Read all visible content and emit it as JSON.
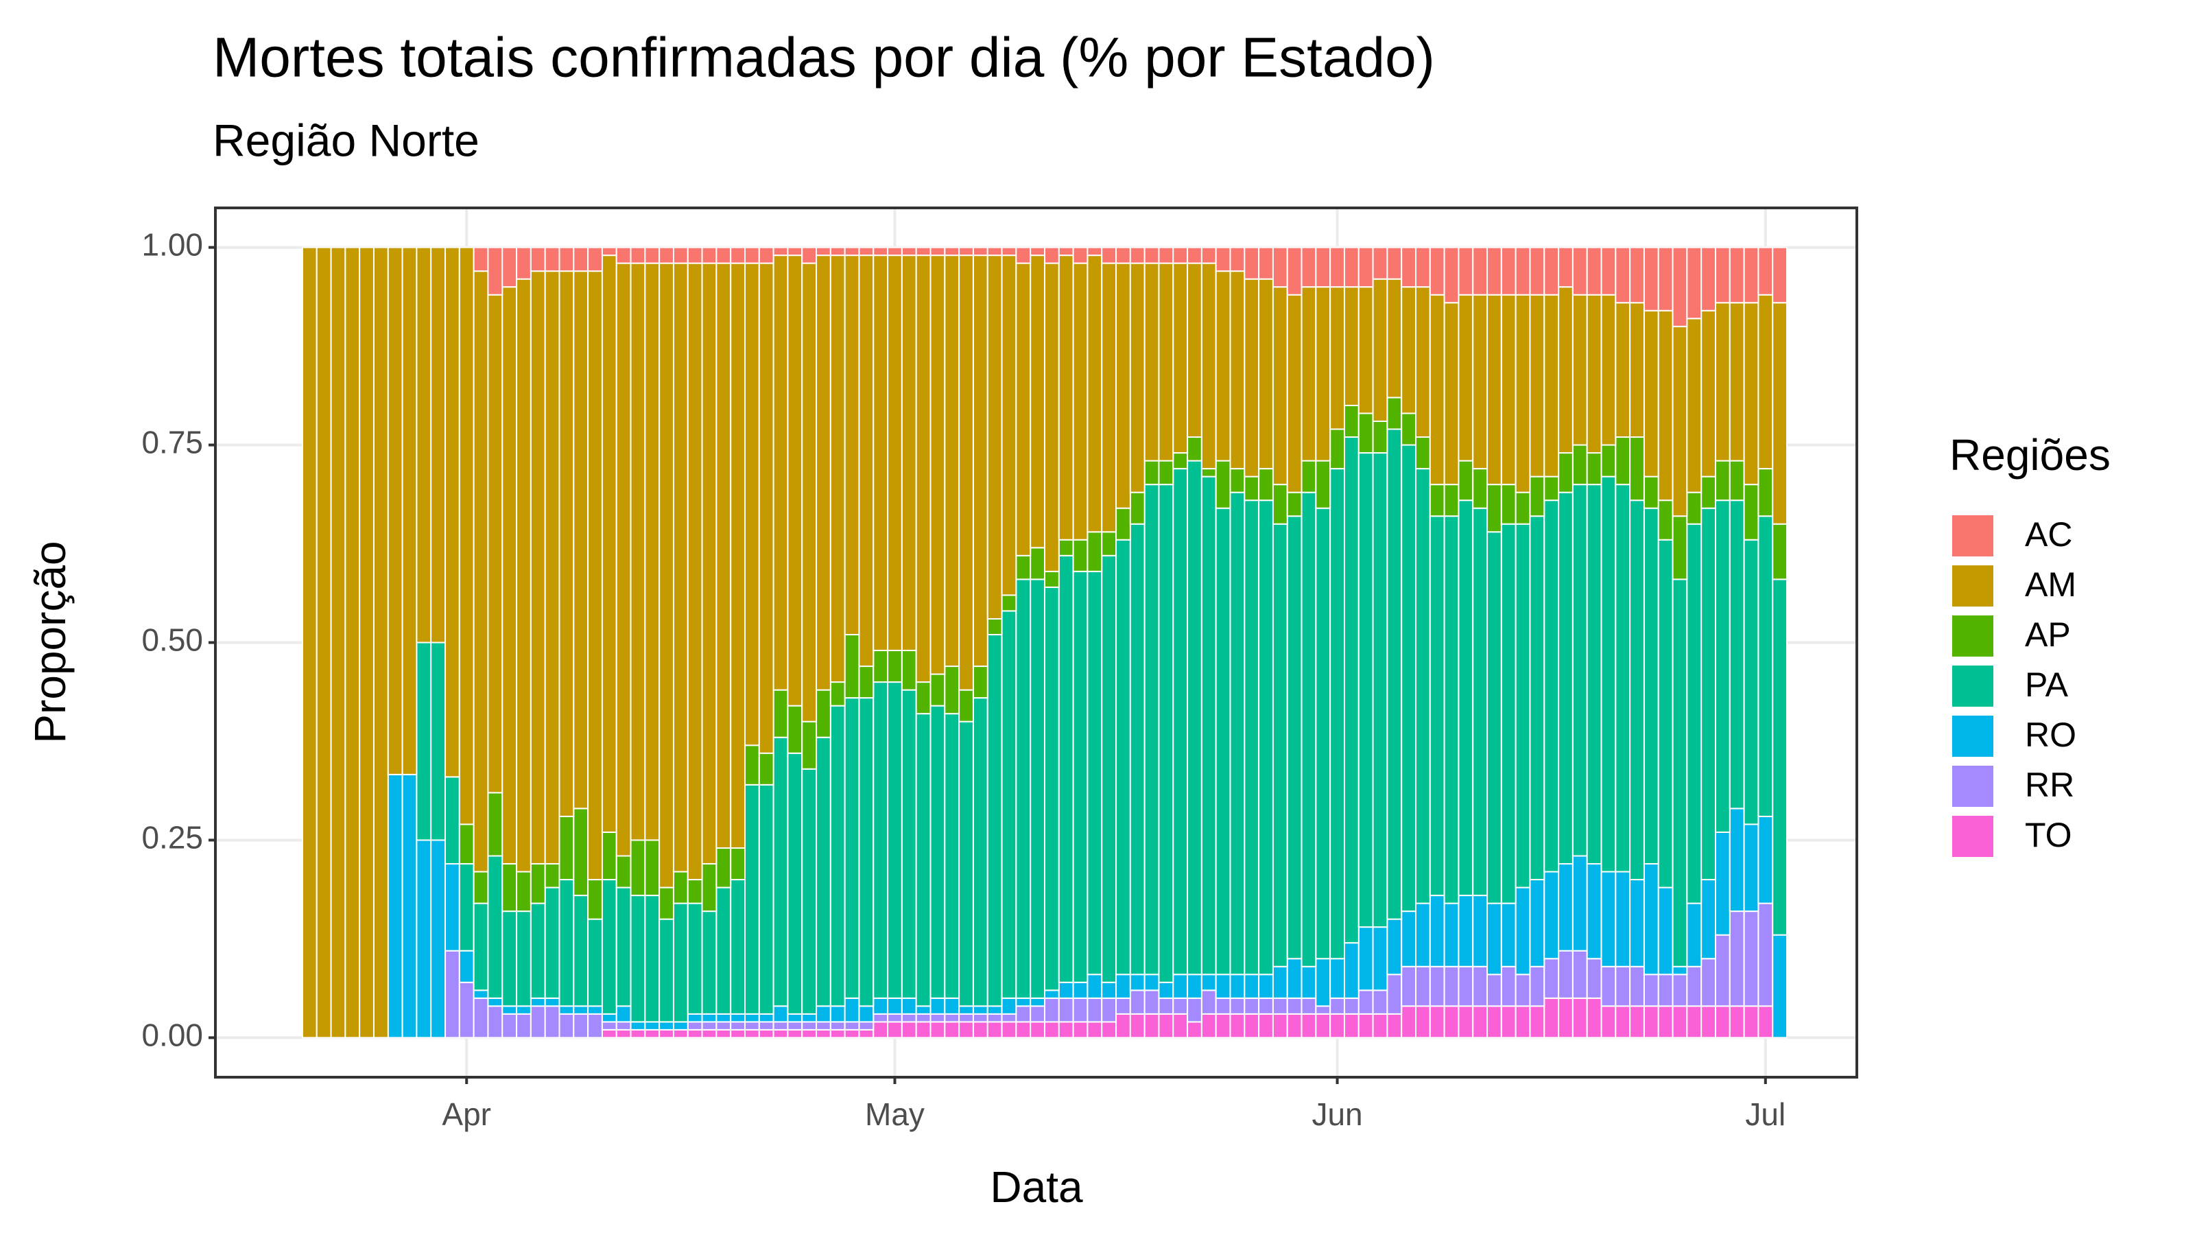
{
  "chart_data": {
    "type": "stacked_bar",
    "title": "Mortes totais confirmadas por dia (% por Estado)",
    "subtitle": "Região  Norte",
    "x_label": "Data",
    "y_label": "Proporção",
    "legend_title": "Regiões",
    "legend_position": "right",
    "grid": true,
    "categories": [
      null,
      null,
      null,
      null,
      null,
      null,
      null,
      null,
      null,
      null,
      null,
      "Apr",
      null,
      null,
      null,
      null,
      null,
      null,
      null,
      null,
      null,
      null,
      null,
      null,
      null,
      null,
      null,
      null,
      null,
      null,
      null,
      null,
      null,
      null,
      null,
      null,
      null,
      null,
      null,
      null,
      null,
      "May",
      null,
      null,
      null,
      null,
      null,
      null,
      null,
      null,
      null,
      null,
      null,
      null,
      null,
      null,
      null,
      null,
      null,
      null,
      null,
      null,
      null,
      null,
      null,
      null,
      null,
      null,
      null,
      null,
      null,
      null,
      "Jun",
      null,
      null,
      null,
      null,
      null,
      null,
      null,
      null,
      null,
      null,
      null,
      null,
      null,
      null,
      null,
      null,
      null,
      null,
      null,
      null,
      null,
      null,
      null,
      null,
      null,
      null,
      null,
      null,
      null,
      "Jul",
      null
    ],
    "ylim": [
      -0.05,
      1.05
    ],
    "yticks": [
      {
        "value": 0,
        "label": "0.00"
      },
      {
        "value": 0.25,
        "label": "0.25"
      },
      {
        "value": 0.5,
        "label": "0.50"
      },
      {
        "value": 0.75,
        "label": "0.75"
      },
      {
        "value": 1,
        "label": "1.00"
      }
    ],
    "series": [
      {
        "name": "AC",
        "color": "#F8766D",
        "values": [
          0,
          0,
          0,
          0,
          0,
          0,
          0,
          0,
          0,
          0,
          0,
          0,
          0.03,
          0.06,
          0.05,
          0.04,
          0.03,
          0.03,
          0.03,
          0.03,
          0.03,
          0.01,
          0.02,
          0.02,
          0.02,
          0.02,
          0.02,
          0.02,
          0.02,
          0.02,
          0.02,
          0.02,
          0.02,
          0.01,
          0.01,
          0.02,
          0.01,
          0.01,
          0.01,
          0.01,
          0.01,
          0.01,
          0.01,
          0.01,
          0.01,
          0.01,
          0.01,
          0.01,
          0.01,
          0.01,
          0.02,
          0.01,
          0.02,
          0.01,
          0.02,
          0.01,
          0.02,
          0.02,
          0.02,
          0.02,
          0.02,
          0.02,
          0.02,
          0.02,
          0.03,
          0.03,
          0.04,
          0.04,
          0.05,
          0.06,
          0.05,
          0.05,
          0.05,
          0.05,
          0.05,
          0.04,
          0.04,
          0.05,
          0.05,
          0.06,
          0.07,
          0.06,
          0.06,
          0.06,
          0.06,
          0.06,
          0.06,
          0.06,
          0.05,
          0.06,
          0.06,
          0.06,
          0.07,
          0.07,
          0.08,
          0.08,
          0.1,
          0.09,
          0.08,
          0.07,
          0.07,
          0.07,
          0.06,
          0.07
        ]
      },
      {
        "name": "AM",
        "color": "#C49A00",
        "values": [
          1,
          1,
          1,
          1,
          1,
          1,
          0.667,
          0.667,
          0.5,
          0.5,
          0.67,
          0.73,
          0.76,
          0.63,
          0.73,
          0.75,
          0.75,
          0.75,
          0.69,
          0.68,
          0.77,
          0.73,
          0.75,
          0.73,
          0.73,
          0.79,
          0.77,
          0.78,
          0.76,
          0.74,
          0.74,
          0.61,
          0.62,
          0.55,
          0.57,
          0.58,
          0.55,
          0.54,
          0.48,
          0.52,
          0.5,
          0.5,
          0.5,
          0.54,
          0.53,
          0.52,
          0.55,
          0.52,
          0.46,
          0.43,
          0.37,
          0.37,
          0.39,
          0.36,
          0.35,
          0.35,
          0.34,
          0.31,
          0.29,
          0.25,
          0.25,
          0.24,
          0.22,
          0.26,
          0.24,
          0.25,
          0.25,
          0.24,
          0.25,
          0.25,
          0.22,
          0.22,
          0.18,
          0.15,
          0.16,
          0.18,
          0.15,
          0.16,
          0.19,
          0.24,
          0.23,
          0.21,
          0.22,
          0.24,
          0.24,
          0.25,
          0.23,
          0.23,
          0.21,
          0.19,
          0.2,
          0.19,
          0.17,
          0.17,
          0.21,
          0.24,
          0.24,
          0.22,
          0.21,
          0.2,
          0.2,
          0.23,
          0.22,
          0.28
        ]
      },
      {
        "name": "AP",
        "color": "#53B400",
        "values": [
          0,
          0,
          0,
          0,
          0,
          0,
          0,
          0,
          0,
          0,
          0,
          0.05,
          0.04,
          0.08,
          0.06,
          0.05,
          0.05,
          0.03,
          0.08,
          0.11,
          0.05,
          0.06,
          0.04,
          0.07,
          0.07,
          0.04,
          0.04,
          0.03,
          0.06,
          0.05,
          0.04,
          0.05,
          0.04,
          0.06,
          0.06,
          0.06,
          0.06,
          0.03,
          0.08,
          0.04,
          0.04,
          0.04,
          0.05,
          0.04,
          0.04,
          0.06,
          0.04,
          0.04,
          0.02,
          0.02,
          0.03,
          0.04,
          0.02,
          0.02,
          0.04,
          0.05,
          0.03,
          0.04,
          0.04,
          0.03,
          0.03,
          0.02,
          0.03,
          0.01,
          0.06,
          0.03,
          0.03,
          0.04,
          0.05,
          0.03,
          0.04,
          0.06,
          0.05,
          0.04,
          0.05,
          0.04,
          0.04,
          0.04,
          0.04,
          0.04,
          0.04,
          0.05,
          0.05,
          0.06,
          0.05,
          0.04,
          0.05,
          0.03,
          0.05,
          0.05,
          0.04,
          0.04,
          0.06,
          0.08,
          0.04,
          0.05,
          0.08,
          0.04,
          0.04,
          0.05,
          0.05,
          0.07,
          0.06,
          0.07
        ]
      },
      {
        "name": "PA",
        "color": "#00C094",
        "values": [
          0,
          0,
          0,
          0,
          0,
          0,
          0,
          0,
          0.25,
          0.25,
          0.11,
          0.11,
          0.11,
          0.18,
          0.12,
          0.12,
          0.12,
          0.14,
          0.16,
          0.14,
          0.11,
          0.17,
          0.15,
          0.16,
          0.16,
          0.13,
          0.15,
          0.14,
          0.13,
          0.16,
          0.17,
          0.29,
          0.29,
          0.34,
          0.33,
          0.31,
          0.34,
          0.38,
          0.38,
          0.39,
          0.4,
          0.4,
          0.39,
          0.37,
          0.37,
          0.36,
          0.36,
          0.39,
          0.47,
          0.49,
          0.53,
          0.53,
          0.51,
          0.54,
          0.52,
          0.51,
          0.54,
          0.55,
          0.57,
          0.62,
          0.63,
          0.64,
          0.65,
          0.63,
          0.59,
          0.61,
          0.6,
          0.6,
          0.56,
          0.56,
          0.6,
          0.57,
          0.62,
          0.64,
          0.6,
          0.6,
          0.62,
          0.59,
          0.55,
          0.48,
          0.49,
          0.5,
          0.49,
          0.47,
          0.48,
          0.46,
          0.46,
          0.47,
          0.47,
          0.47,
          0.48,
          0.5,
          0.49,
          0.48,
          0.45,
          0.44,
          0.49,
          0.48,
          0.47,
          0.42,
          0.39,
          0.36,
          0.38,
          0.45
        ]
      },
      {
        "name": "RO",
        "color": "#00B6EB",
        "values": [
          0,
          0,
          0,
          0,
          0,
          0,
          0.333,
          0.333,
          0.25,
          0.25,
          0.11,
          0.04,
          0.01,
          0.01,
          0.01,
          0.01,
          0.01,
          0.01,
          0.01,
          0.01,
          0.01,
          0.01,
          0.02,
          0.01,
          0.01,
          0.01,
          0.01,
          0.01,
          0.01,
          0.01,
          0.01,
          0.01,
          0.01,
          0.02,
          0.01,
          0.01,
          0.02,
          0.02,
          0.03,
          0.02,
          0.02,
          0.02,
          0.02,
          0.01,
          0.02,
          0.02,
          0.01,
          0.01,
          0.01,
          0.02,
          0.01,
          0.01,
          0.01,
          0.02,
          0.02,
          0.03,
          0.02,
          0.03,
          0.02,
          0.02,
          0.02,
          0.03,
          0.03,
          0.02,
          0.03,
          0.03,
          0.03,
          0.03,
          0.04,
          0.05,
          0.04,
          0.06,
          0.05,
          0.07,
          0.08,
          0.08,
          0.07,
          0.07,
          0.08,
          0.09,
          0.08,
          0.09,
          0.09,
          0.09,
          0.08,
          0.11,
          0.11,
          0.11,
          0.11,
          0.12,
          0.12,
          0.12,
          0.12,
          0.11,
          0.14,
          0.11,
          0.01,
          0.08,
          0.1,
          0.13,
          0.13,
          0.11,
          0.11,
          0.13
        ]
      },
      {
        "name": "RR",
        "color": "#A58AFF",
        "values": [
          0,
          0,
          0,
          0,
          0,
          0,
          0,
          0,
          0,
          0,
          0.11,
          0.07,
          0.05,
          0.04,
          0.03,
          0.03,
          0.04,
          0.04,
          0.03,
          0.03,
          0.03,
          0.01,
          0.01,
          0,
          0,
          0,
          0,
          0.01,
          0.01,
          0.01,
          0.01,
          0.01,
          0.01,
          0.01,
          0.01,
          0.01,
          0.01,
          0.01,
          0.01,
          0.01,
          0.01,
          0.01,
          0.01,
          0.01,
          0.01,
          0.01,
          0.01,
          0.01,
          0.01,
          0.01,
          0.02,
          0.02,
          0.03,
          0.03,
          0.03,
          0.03,
          0.03,
          0.02,
          0.03,
          0.03,
          0.02,
          0.02,
          0.03,
          0.03,
          0.02,
          0.02,
          0.02,
          0.02,
          0.02,
          0.02,
          0.02,
          0.01,
          0.02,
          0.02,
          0.03,
          0.03,
          0.05,
          0.05,
          0.05,
          0.05,
          0.05,
          0.05,
          0.05,
          0.04,
          0.05,
          0.04,
          0.05,
          0.05,
          0.06,
          0.06,
          0.05,
          0.05,
          0.05,
          0.05,
          0.04,
          0.04,
          0.04,
          0.05,
          0.06,
          0.09,
          0.12,
          0.12,
          0.13,
          0
        ]
      },
      {
        "name": "TO",
        "color": "#FB61D7",
        "values": [
          0,
          0,
          0,
          0,
          0,
          0,
          0,
          0,
          0,
          0,
          0,
          0,
          0,
          0,
          0,
          0,
          0,
          0,
          0,
          0,
          0,
          0.01,
          0.01,
          0.01,
          0.01,
          0.01,
          0.01,
          0.01,
          0.01,
          0.01,
          0.01,
          0.01,
          0.01,
          0.01,
          0.01,
          0.01,
          0.01,
          0.01,
          0.01,
          0.01,
          0.02,
          0.02,
          0.02,
          0.02,
          0.02,
          0.02,
          0.02,
          0.02,
          0.02,
          0.02,
          0.02,
          0.02,
          0.02,
          0.02,
          0.02,
          0.02,
          0.02,
          0.03,
          0.03,
          0.03,
          0.03,
          0.03,
          0.02,
          0.03,
          0.03,
          0.03,
          0.03,
          0.03,
          0.03,
          0.03,
          0.03,
          0.03,
          0.03,
          0.03,
          0.03,
          0.03,
          0.03,
          0.04,
          0.04,
          0.04,
          0.04,
          0.04,
          0.04,
          0.04,
          0.04,
          0.04,
          0.04,
          0.05,
          0.05,
          0.05,
          0.05,
          0.04,
          0.04,
          0.04,
          0.04,
          0.04,
          0.04,
          0.04,
          0.04,
          0.04,
          0.04,
          0.04,
          0.04,
          0
        ]
      }
    ]
  }
}
